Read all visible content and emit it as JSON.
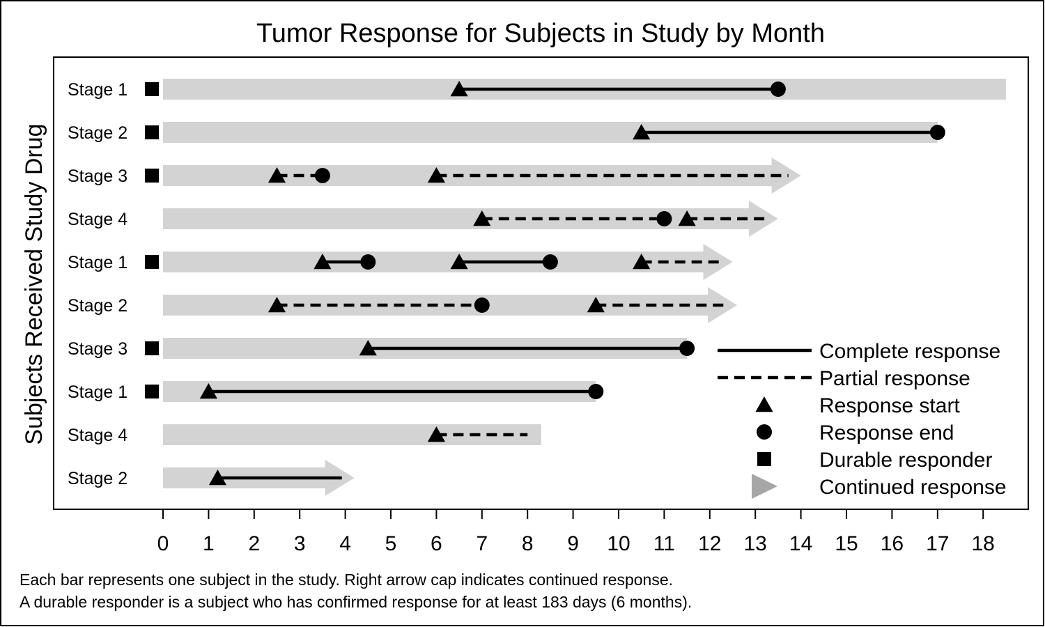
{
  "chart_data": {
    "type": "swimmer",
    "title": "Tumor Response for Subjects in Study by Month",
    "ylabel": "Subjects Received Study Drug",
    "xlabel": "",
    "xlim": [
      0,
      18
    ],
    "xticks": [
      0,
      1,
      2,
      3,
      4,
      5,
      6,
      7,
      8,
      9,
      10,
      11,
      12,
      13,
      14,
      15,
      16,
      17,
      18
    ],
    "grid": false,
    "legend_position": "bottom-right inside",
    "subjects": [
      {
        "label": "Stage 1",
        "duration": 18.5,
        "durable": true,
        "continued": false,
        "responses": [
          {
            "type": "complete",
            "start": 6.5,
            "end": 13.5
          }
        ]
      },
      {
        "label": "Stage 2",
        "duration": 17.0,
        "durable": true,
        "continued": false,
        "responses": [
          {
            "type": "complete",
            "start": 10.5,
            "end": 17.0
          }
        ]
      },
      {
        "label": "Stage 3",
        "duration": 14.0,
        "durable": true,
        "continued": true,
        "responses": [
          {
            "type": "partial",
            "start": 2.5,
            "end": 3.5
          },
          {
            "type": "partial",
            "start": 6.0,
            "end": null
          }
        ]
      },
      {
        "label": "Stage 4",
        "duration": 13.5,
        "durable": false,
        "continued": true,
        "responses": [
          {
            "type": "partial",
            "start": 7.0,
            "end": 11.0
          },
          {
            "type": "partial",
            "start": 11.5,
            "end": null
          }
        ]
      },
      {
        "label": "Stage 1",
        "duration": 12.5,
        "durable": true,
        "continued": true,
        "responses": [
          {
            "type": "complete",
            "start": 3.5,
            "end": 4.5
          },
          {
            "type": "complete",
            "start": 6.5,
            "end": 8.5
          },
          {
            "type": "partial",
            "start": 10.5,
            "end": null
          }
        ]
      },
      {
        "label": "Stage 2",
        "duration": 12.6,
        "durable": false,
        "continued": true,
        "responses": [
          {
            "type": "partial",
            "start": 2.5,
            "end": 7.0
          },
          {
            "type": "partial",
            "start": 9.5,
            "end": null
          }
        ]
      },
      {
        "label": "Stage 3",
        "duration": 11.5,
        "durable": true,
        "continued": false,
        "responses": [
          {
            "type": "complete",
            "start": 4.5,
            "end": 11.5
          }
        ]
      },
      {
        "label": "Stage 1",
        "duration": 9.5,
        "durable": true,
        "continued": false,
        "responses": [
          {
            "type": "complete",
            "start": 1.0,
            "end": 9.5
          }
        ]
      },
      {
        "label": "Stage 4",
        "duration": 8.3,
        "durable": false,
        "continued": false,
        "responses": [
          {
            "type": "partial",
            "start": 6.0,
            "end": null
          }
        ]
      },
      {
        "label": "Stage 2",
        "duration": 4.2,
        "durable": false,
        "continued": true,
        "responses": [
          {
            "type": "complete",
            "start": 1.2,
            "end": null
          }
        ]
      }
    ],
    "legend": [
      {
        "key": "complete",
        "label": "Complete response"
      },
      {
        "key": "partial",
        "label": "Partial response"
      },
      {
        "key": "start",
        "label": "Response start"
      },
      {
        "key": "end",
        "label": "Response end"
      },
      {
        "key": "durable",
        "label": "Durable responder"
      },
      {
        "key": "continued",
        "label": "Continued response"
      }
    ],
    "footnotes": [
      "Each bar represents one subject in the study.  Right arrow cap indicates continued response.",
      "A durable responder is a subject who has confirmed response for at least 183 days (6 months)."
    ],
    "colors": {
      "bar": "#d3d3d3",
      "marker": "#000000",
      "continued_legend": "#a6a6a6"
    }
  }
}
